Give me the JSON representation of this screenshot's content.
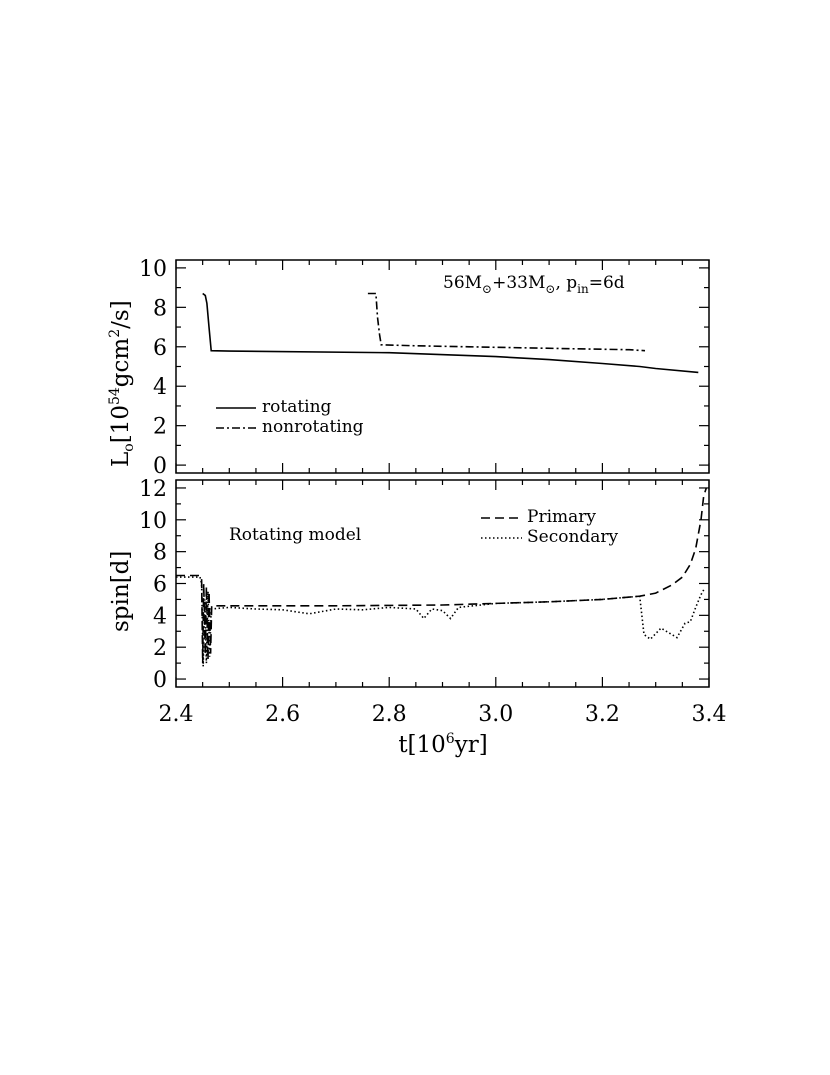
{
  "chart_data": [
    {
      "type": "line",
      "panel": "top",
      "annotation": {
        "mass1": "56M",
        "mass2": "33M",
        "sun_symbol": "⊙",
        "period_symbol": "p",
        "period_subscript": "in",
        "period_value": "=6d"
      },
      "ylabel": {
        "main": "L",
        "sub": "o",
        "open": "[10",
        "exp": "54",
        "unit": "gcm",
        "unit_exp": "2",
        "close": "/s]"
      },
      "xlim": [
        2.4,
        3.4
      ],
      "ylim": [
        -0.4,
        10.4
      ],
      "yticks": [
        "0",
        "2",
        "4",
        "6",
        "8",
        "10"
      ],
      "legend_position": "bottom-left",
      "series": [
        {
          "name": "rotating",
          "dash": "solid",
          "points": [
            [
              2.45,
              8.7
            ],
            [
              2.455,
              8.6
            ],
            [
              2.458,
              8.2
            ],
            [
              2.462,
              7.0
            ],
            [
              2.466,
              5.8
            ],
            [
              2.5,
              5.78
            ],
            [
              2.8,
              5.7
            ],
            [
              3.0,
              5.5
            ],
            [
              3.1,
              5.35
            ],
            [
              3.2,
              5.15
            ],
            [
              3.27,
              5.0
            ],
            [
              3.3,
              4.9
            ],
            [
              3.38,
              4.7
            ]
          ]
        },
        {
          "name": "nonrotating",
          "dash": "dashdot",
          "points": [
            [
              2.76,
              8.7
            ],
            [
              2.775,
              8.7
            ],
            [
              2.778,
              7.5
            ],
            [
              2.782,
              6.6
            ],
            [
              2.785,
              6.1
            ],
            [
              2.85,
              6.05
            ],
            [
              2.95,
              6.0
            ],
            [
              3.05,
              5.95
            ],
            [
              3.15,
              5.9
            ],
            [
              3.25,
              5.85
            ],
            [
              3.28,
              5.8
            ]
          ]
        }
      ]
    },
    {
      "type": "line",
      "panel": "bottom",
      "title": "Rotating model",
      "xlabel": {
        "main": "t[10",
        "exp": "6",
        "rest": "yr]"
      },
      "ylabel": "spin[d]",
      "xlim": [
        2.4,
        3.4
      ],
      "ylim": [
        -0.5,
        12.5
      ],
      "xticks": [
        "2.4",
        "2.6",
        "2.8",
        "3.0",
        "3.2",
        "3.4"
      ],
      "yticks": [
        "0",
        "2",
        "4",
        "6",
        "8",
        "10",
        "12"
      ],
      "legend_position": "top-right",
      "series": [
        {
          "name": "Primary",
          "dash": "dashed",
          "points": [
            [
              2.4,
              6.5
            ],
            [
              2.445,
              6.5
            ],
            [
              2.448,
              6.3
            ],
            [
              2.45,
              1.0
            ],
            [
              2.452,
              6.0
            ],
            [
              2.455,
              1.5
            ],
            [
              2.457,
              5.8
            ],
            [
              2.46,
              1.2
            ],
            [
              2.462,
              5.5
            ],
            [
              2.465,
              1.6
            ],
            [
              2.467,
              4.6
            ],
            [
              2.5,
              4.6
            ],
            [
              2.7,
              4.6
            ],
            [
              2.9,
              4.65
            ],
            [
              3.0,
              4.75
            ],
            [
              3.1,
              4.85
            ],
            [
              3.2,
              5.0
            ],
            [
              3.27,
              5.2
            ],
            [
              3.3,
              5.4
            ],
            [
              3.33,
              5.9
            ],
            [
              3.35,
              6.4
            ],
            [
              3.365,
              7.2
            ],
            [
              3.375,
              8.2
            ],
            [
              3.385,
              10.0
            ],
            [
              3.39,
              11.5
            ],
            [
              3.395,
              12.0
            ]
          ]
        },
        {
          "name": "Secondary",
          "dash": "dotted",
          "points": [
            [
              2.4,
              6.4
            ],
            [
              2.445,
              6.4
            ],
            [
              2.448,
              6.0
            ],
            [
              2.451,
              0.8
            ],
            [
              2.454,
              5.0
            ],
            [
              2.457,
              1.0
            ],
            [
              2.46,
              5.5
            ],
            [
              2.463,
              1.4
            ],
            [
              2.466,
              4.4
            ],
            [
              2.5,
              4.5
            ],
            [
              2.55,
              4.4
            ],
            [
              2.6,
              4.35
            ],
            [
              2.65,
              4.1
            ],
            [
              2.7,
              4.4
            ],
            [
              2.75,
              4.35
            ],
            [
              2.8,
              4.5
            ],
            [
              2.85,
              4.4
            ],
            [
              2.865,
              3.8
            ],
            [
              2.88,
              4.4
            ],
            [
              2.9,
              4.3
            ],
            [
              2.915,
              3.8
            ],
            [
              2.93,
              4.5
            ],
            [
              3.0,
              4.75
            ],
            [
              3.1,
              4.85
            ],
            [
              3.2,
              5.0
            ],
            [
              3.27,
              5.2
            ],
            [
              3.278,
              2.8
            ],
            [
              3.29,
              2.5
            ],
            [
              3.31,
              3.2
            ],
            [
              3.33,
              2.8
            ],
            [
              3.34,
              2.6
            ],
            [
              3.355,
              3.5
            ],
            [
              3.365,
              3.6
            ],
            [
              3.375,
              4.5
            ],
            [
              3.385,
              5.3
            ],
            [
              3.39,
              5.6
            ]
          ]
        }
      ]
    }
  ]
}
